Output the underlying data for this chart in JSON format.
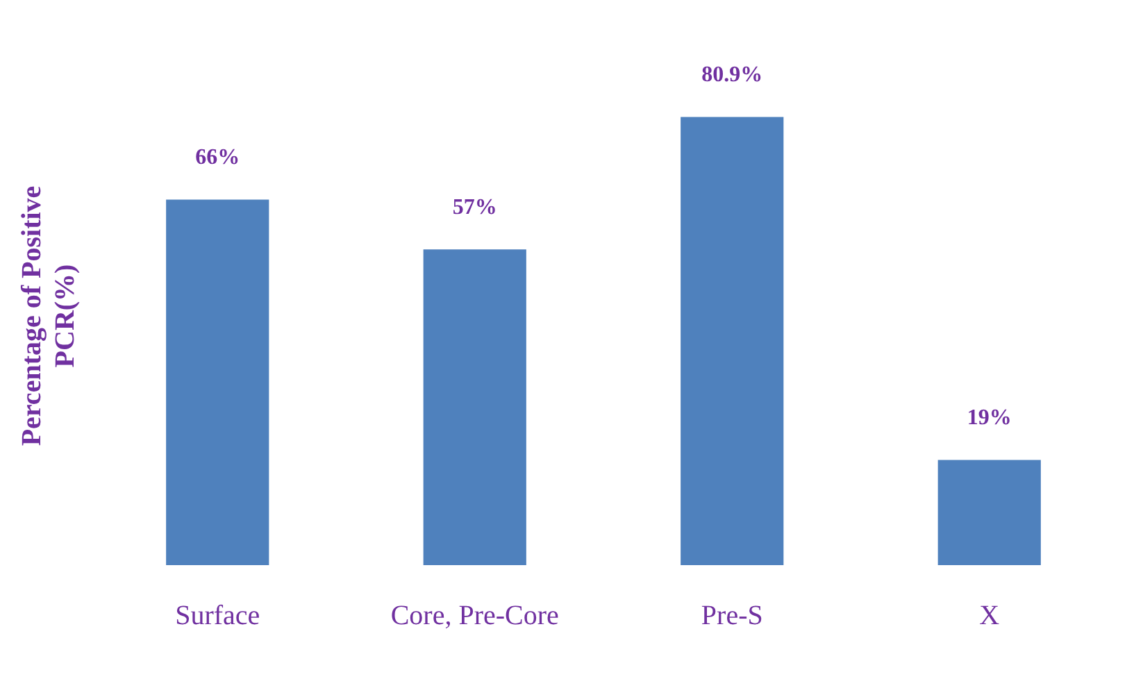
{
  "chart_data": {
    "type": "bar",
    "ylabel": "Percentage of Positive PCR(%)",
    "categories": [
      "Surface",
      "Core, Pre-Core",
      "Pre-S",
      "X"
    ],
    "values": [
      66,
      57,
      80.9,
      19
    ],
    "color": "#4f81bd",
    "value_labels": [
      "66%",
      "57%",
      "80.9%",
      "19%"
    ],
    "tick_labels": "x",
    "grid": false,
    "legend": false
  }
}
